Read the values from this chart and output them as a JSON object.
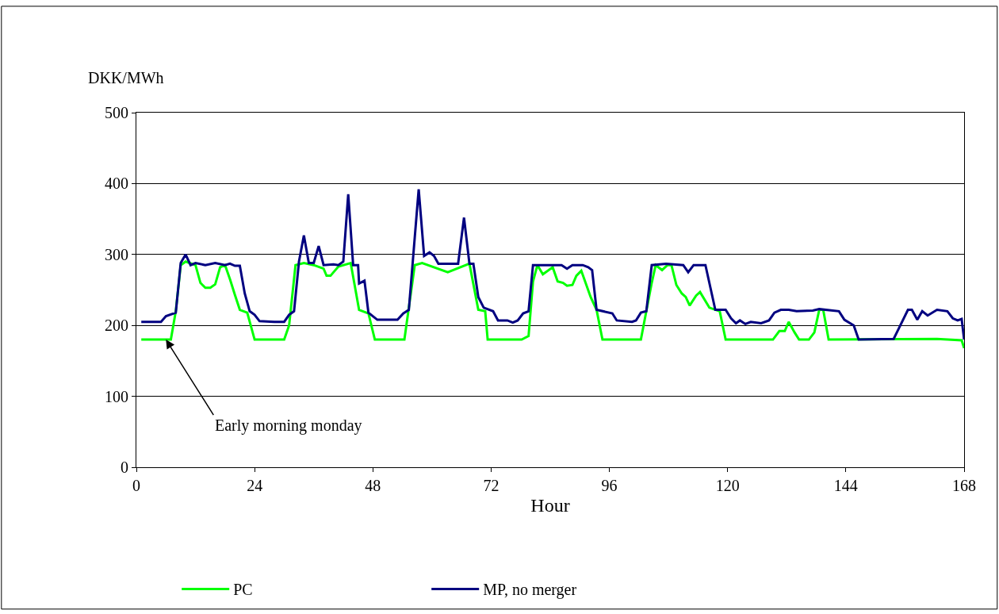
{
  "chart_data": {
    "type": "line",
    "xlabel": "Hour",
    "ylabel": "DKK/MWh",
    "xlim": [
      0,
      168
    ],
    "xticks": [
      0,
      24,
      48,
      72,
      96,
      120,
      144,
      168
    ],
    "ylim": [
      0,
      500
    ],
    "yticks": [
      0,
      100,
      200,
      300,
      400,
      500
    ],
    "grid": "y",
    "legend": "bottom",
    "marker": "none",
    "line_style": "solid",
    "annotations": [
      {
        "text": "Early morning monday",
        "x": 6,
        "y": 180
      }
    ],
    "series": [
      {
        "name": "PC",
        "color": "#00ff00",
        "x": [
          1,
          7,
          8,
          9,
          10,
          12,
          13,
          14,
          15,
          16,
          17,
          18,
          19,
          20,
          21,
          22.5,
          24,
          30,
          31,
          32.3,
          34,
          36,
          38,
          38.6,
          39.4,
          41,
          43.5,
          45.2,
          47.1,
          48.4,
          54.4,
          56.5,
          58,
          63.2,
          67.6,
          69.4,
          70.8,
          71.3,
          78.2,
          79.6,
          80.5,
          81.4,
          82.5,
          84.5,
          85.5,
          86.6,
          87.4,
          88.5,
          89.3,
          90.3,
          92.2,
          93.4,
          94.6,
          102.4,
          104.6,
          105.4,
          106.7,
          107.8,
          108.6,
          109.6,
          110.7,
          111.5,
          112.3,
          113.6,
          114.4,
          116.3,
          118.4,
          119.6,
          129.2,
          130.5,
          131.6,
          132.4,
          133.6,
          134.5,
          136.5,
          137.6,
          138.6,
          139.4,
          140.5,
          162.5,
          167.5,
          168
        ],
        "values": [
          180,
          180,
          220,
          285,
          290,
          285,
          260,
          253,
          253,
          258,
          282,
          285,
          265,
          243,
          222,
          218,
          180,
          180,
          200,
          285,
          288,
          285,
          280,
          270,
          270,
          283,
          288,
          222,
          217,
          180,
          180,
          285,
          288,
          275,
          287,
          222,
          220,
          180,
          180,
          185,
          262,
          285,
          272,
          282,
          262,
          260,
          256,
          257,
          270,
          277,
          240,
          222,
          180,
          180,
          260,
          285,
          278,
          285,
          285,
          257,
          245,
          240,
          228,
          242,
          247,
          225,
          220,
          180,
          180,
          192,
          192,
          205,
          190,
          180,
          180,
          190,
          222,
          222,
          180,
          181,
          179,
          168
        ]
      },
      {
        "name": "MP, no merger",
        "color": "#000080",
        "x": [
          1,
          5,
          6,
          8,
          9,
          10,
          11,
          12,
          14,
          16,
          18,
          19,
          20,
          21,
          22,
          23,
          24,
          25,
          28,
          30,
          31,
          32,
          33,
          34,
          35,
          36,
          37,
          38,
          40,
          41,
          42,
          43,
          44,
          45,
          45.2,
          46.3,
          47.1,
          48.9,
          53,
          54.2,
          55.3,
          57.3,
          58.4,
          59.5,
          60.4,
          61.3,
          65.3,
          66.5,
          67.6,
          68.4,
          69.4,
          70.5,
          72.4,
          73.4,
          75.3,
          76.4,
          77.4,
          78.5,
          79.6,
          80.5,
          86.3,
          87.4,
          88.5,
          90.6,
          91.7,
          92.5,
          93.4,
          96.6,
          97.5,
          100.6,
          101.4,
          102.4,
          103.5,
          104.6,
          107.5,
          111,
          112,
          113.1,
          115.5,
          117.5,
          119.6,
          120.7,
          121.7,
          122.5,
          123.6,
          124.7,
          126.8,
          128.4,
          129.5,
          130.8,
          132.4,
          134,
          137.3,
          138.6,
          142.6,
          143.7,
          145.6,
          146.6,
          153.7,
          154.7,
          156.6,
          157.4,
          158.5,
          159.5,
          160.6,
          162.5,
          164.6,
          165.7,
          166.7,
          167.5,
          168
        ],
        "values": [
          205,
          205,
          213,
          218,
          288,
          300,
          285,
          288,
          285,
          288,
          285,
          287,
          284,
          284,
          245,
          220,
          215,
          206,
          205,
          205,
          215,
          220,
          290,
          327,
          288,
          288,
          312,
          285,
          286,
          285,
          290,
          385,
          285,
          285,
          259,
          263,
          218,
          208,
          208,
          217,
          222,
          392,
          298,
          303,
          298,
          287,
          287,
          352,
          287,
          287,
          240,
          225,
          220,
          207,
          207,
          204,
          207,
          217,
          220,
          285,
          285,
          280,
          285,
          285,
          282,
          278,
          222,
          217,
          207,
          205,
          207,
          218,
          220,
          285,
          287,
          285,
          275,
          285,
          285,
          222,
          222,
          210,
          203,
          207,
          202,
          205,
          203,
          207,
          218,
          222,
          222,
          220,
          221,
          223,
          220,
          208,
          200,
          180,
          181,
          195,
          222,
          222,
          208,
          220,
          214,
          222,
          220,
          210,
          207,
          209,
          180
        ]
      }
    ]
  }
}
